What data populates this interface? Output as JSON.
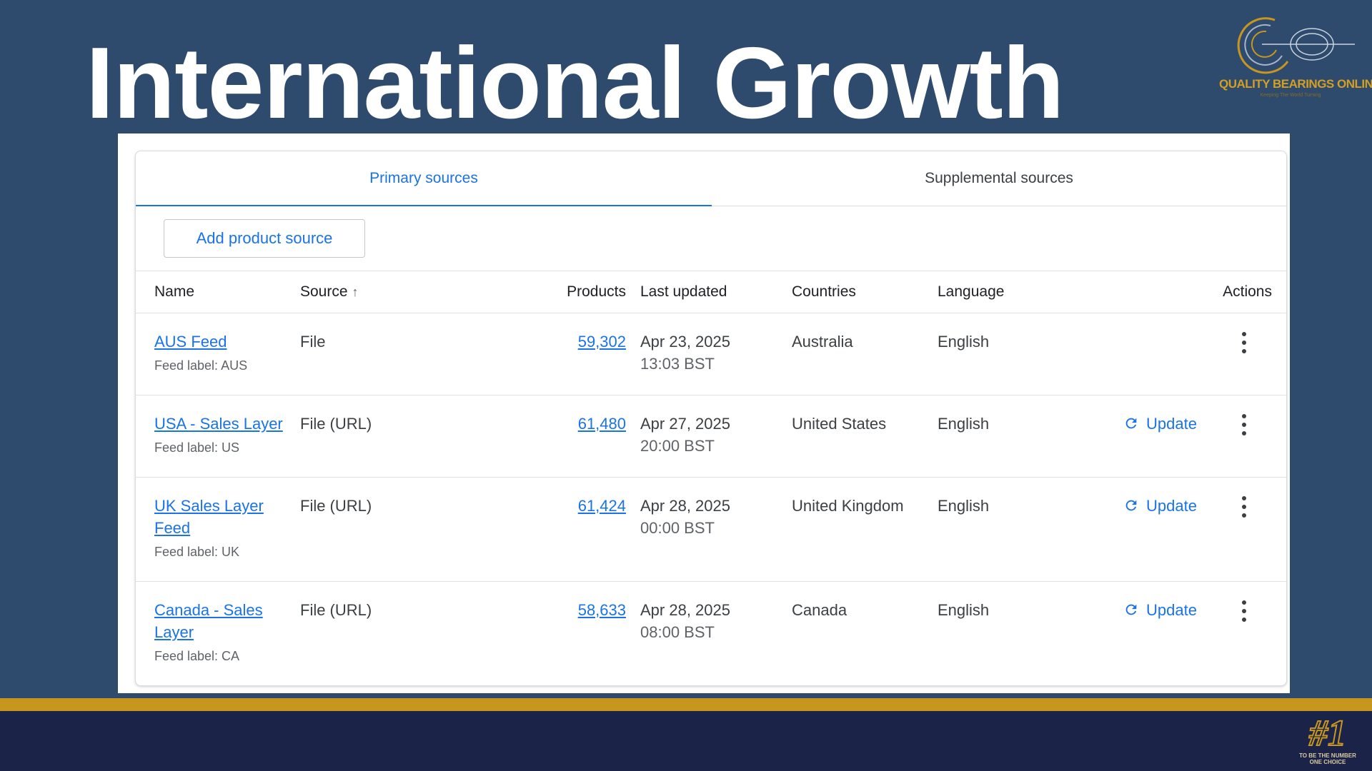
{
  "slide": {
    "title": "International Growth",
    "logo": {
      "name": "QUALITY BEARINGS ONLINE",
      "tagline": "Keeping The World Turning"
    },
    "badge": {
      "number": "#1",
      "text": "TO BE THE NUMBER ONE CHOICE"
    },
    "colors": {
      "background": "#2e4b6e",
      "gold": "#c6961f",
      "footer": "#1b2448",
      "link": "#1a73e8"
    }
  },
  "tabs": [
    {
      "label": "Primary sources",
      "active": true
    },
    {
      "label": "Supplemental sources",
      "active": false
    }
  ],
  "toolbar": {
    "add_label": "Add product source"
  },
  "table": {
    "headers": {
      "name": "Name",
      "source": "Source",
      "products": "Products",
      "last_updated": "Last updated",
      "countries": "Countries",
      "language": "Language",
      "actions": "Actions"
    },
    "sort_icon": "arrow-up-icon",
    "rows": [
      {
        "name": "AUS Feed",
        "feed_label": "Feed label: AUS",
        "source": "File",
        "products": "59,302",
        "date": "Apr 23, 2025",
        "time": "13:03 BST",
        "country": "Australia",
        "language": "English",
        "update": ""
      },
      {
        "name": "USA - Sales Layer",
        "feed_label": "Feed label: US",
        "source": "File (URL)",
        "products": "61,480",
        "date": "Apr 27, 2025",
        "time": "20:00 BST",
        "country": "United States",
        "language": "English",
        "update": "Update"
      },
      {
        "name": "UK Sales Layer Feed",
        "feed_label": "Feed label: UK",
        "source": "File (URL)",
        "products": "61,424",
        "date": "Apr 28, 2025",
        "time": "00:00 BST",
        "country": "United Kingdom",
        "language": "English",
        "update": "Update"
      },
      {
        "name": "Canada - Sales Layer",
        "feed_label": "Feed label: CA",
        "source": "File (URL)",
        "products": "58,633",
        "date": "Apr 28, 2025",
        "time": "08:00 BST",
        "country": "Canada",
        "language": "English",
        "update": "Update"
      }
    ]
  }
}
